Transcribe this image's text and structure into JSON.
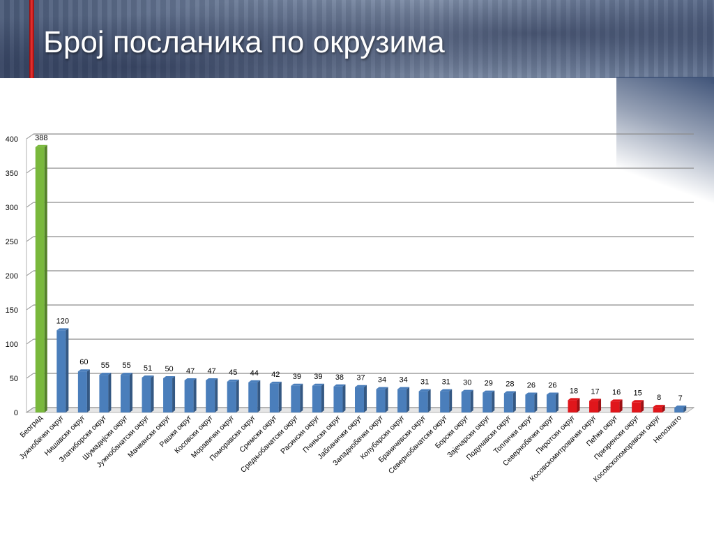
{
  "slide": {
    "title": "Број посланика по окрузима"
  },
  "chart_data": {
    "type": "bar",
    "ylim": [
      0,
      400
    ],
    "yticks": [
      0,
      50,
      100,
      150,
      200,
      250,
      300,
      350,
      400
    ],
    "grid": true,
    "colors": {
      "highlight": "#79b83c",
      "default": "#4a7ebb",
      "low": "#e0161b"
    },
    "categories": [
      "Београд",
      "Јужнобачки округ",
      "Нишавски округ",
      "Златиборски округ",
      "Шумадијски округ",
      "Јужнобанатски округ",
      "Мачвански округ",
      "Рашки округ",
      "Косовски округ",
      "Моравички округ",
      "Поморавски округ",
      "Сремски округ",
      "Средњобанатски округ",
      "Расински округ",
      "Пчињски округ",
      "Јабланички округ",
      "Западнобачки округ",
      "Колубарски округ",
      "Браничевски округ",
      "Севернобанатски округ",
      "Борски округ",
      "Зајечарски округ",
      "Подунавски округ",
      "Топлички округ",
      "Севернобачки округ",
      "Пиротски округ",
      "Косовскомитровачки округ",
      "Пећки округ",
      "Призренски округ",
      "Косовскопоморавски округ",
      "Непознато"
    ],
    "values": [
      388,
      120,
      60,
      55,
      55,
      51,
      50,
      47,
      47,
      45,
      44,
      42,
      39,
      39,
      38,
      37,
      34,
      34,
      31,
      31,
      30,
      29,
      28,
      26,
      26,
      18,
      17,
      16,
      15,
      8,
      7
    ],
    "bar_colors": [
      "highlight",
      "default",
      "default",
      "default",
      "default",
      "default",
      "default",
      "default",
      "default",
      "default",
      "default",
      "default",
      "default",
      "default",
      "default",
      "default",
      "default",
      "default",
      "default",
      "default",
      "default",
      "default",
      "default",
      "default",
      "default",
      "low",
      "low",
      "low",
      "low",
      "low",
      "default"
    ]
  }
}
